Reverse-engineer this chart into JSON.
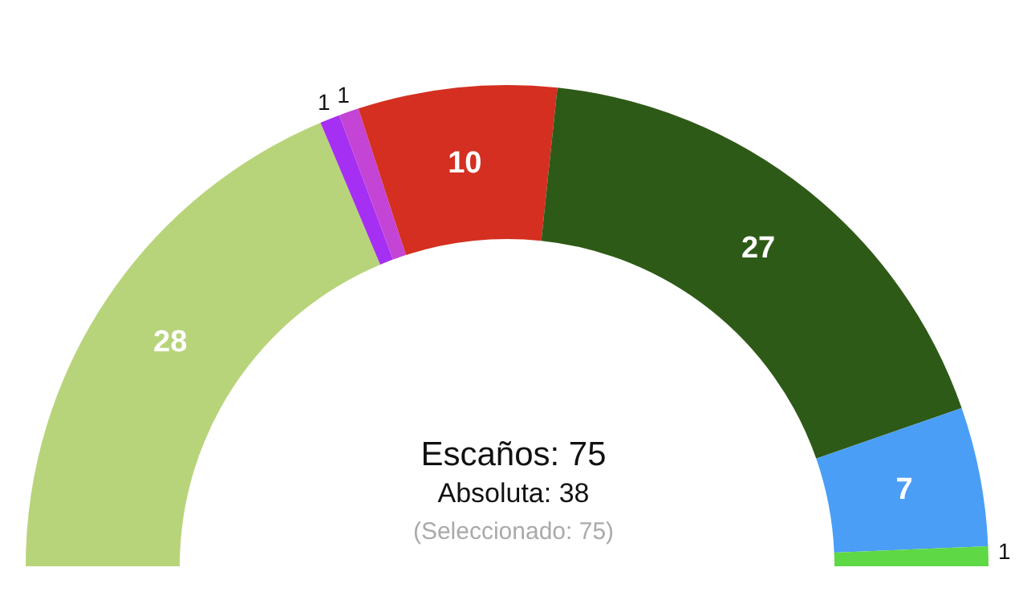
{
  "chart_data": {
    "type": "donut",
    "categories": [
      null,
      null,
      null,
      null,
      null,
      null,
      null
    ],
    "values": [
      28,
      1,
      1,
      10,
      27,
      7,
      1
    ],
    "colors": [
      "#b8d47a",
      "#a52ff2",
      "#c444d6",
      "#d42f20",
      "#2e5a17",
      "#4a9ef5",
      "#5ed844"
    ],
    "data_labels": true,
    "annotations": [
      "Escaños: 75",
      "Absoluta: 38",
      "(Seleccionado: 75)"
    ]
  }
}
